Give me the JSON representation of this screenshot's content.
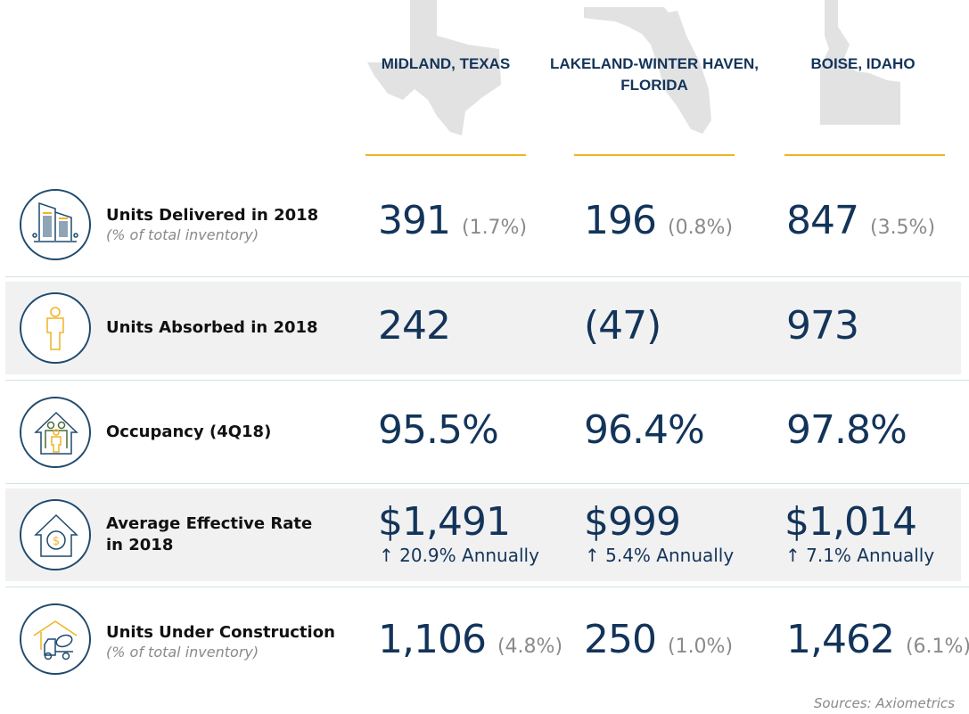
{
  "colors": {
    "navy": "#13345a",
    "gold": "#f0b323",
    "gray_row": "#f1f1f1",
    "state_fill": "#e2e2e2"
  },
  "markets": [
    {
      "name": "MIDLAND, TEXAS",
      "state_icon": "texas-silhouette"
    },
    {
      "name": "LAKELAND-WINTER HAVEN, FLORIDA",
      "state_icon": "florida-silhouette"
    },
    {
      "name": "BOISE, IDAHO",
      "state_icon": "idaho-silhouette"
    }
  ],
  "rows": [
    {
      "label": "Units Delivered in 2018",
      "sublabel": "(% of total inventory)",
      "icon": "buildings-icon",
      "values": [
        {
          "v": "391",
          "p": "(1.7%)"
        },
        {
          "v": "196",
          "p": "(0.8%)"
        },
        {
          "v": "847",
          "p": "(3.5%)"
        }
      ]
    },
    {
      "label": "Units Absorbed in 2018",
      "icon": "person-icon",
      "values": [
        {
          "v": "242"
        },
        {
          "v": "(47)"
        },
        {
          "v": "973"
        }
      ]
    },
    {
      "label": "Occupancy (4Q18)",
      "icon": "family-house-icon",
      "values": [
        {
          "v": "95.5%"
        },
        {
          "v": "96.4%"
        },
        {
          "v": "97.8%"
        }
      ]
    },
    {
      "label": "Average Effective Rate in 2018",
      "icon": "house-dollar-icon",
      "values": [
        {
          "v": "$1,491",
          "c": "↑ 20.9% Annually"
        },
        {
          "v": "$999",
          "c": "↑ 5.4% Annually"
        },
        {
          "v": "$1,014",
          "c": "↑ 7.1% Annually"
        }
      ]
    },
    {
      "label": "Units Under Construction",
      "sublabel": "(% of total inventory)",
      "icon": "cement-truck-icon",
      "values": [
        {
          "v": "1,106",
          "p": "(4.8%)"
        },
        {
          "v": "250",
          "p": "(1.0%)"
        },
        {
          "v": "1,462",
          "p": "(6.1%)"
        }
      ]
    }
  ],
  "source": "Sources: Axiometrics"
}
